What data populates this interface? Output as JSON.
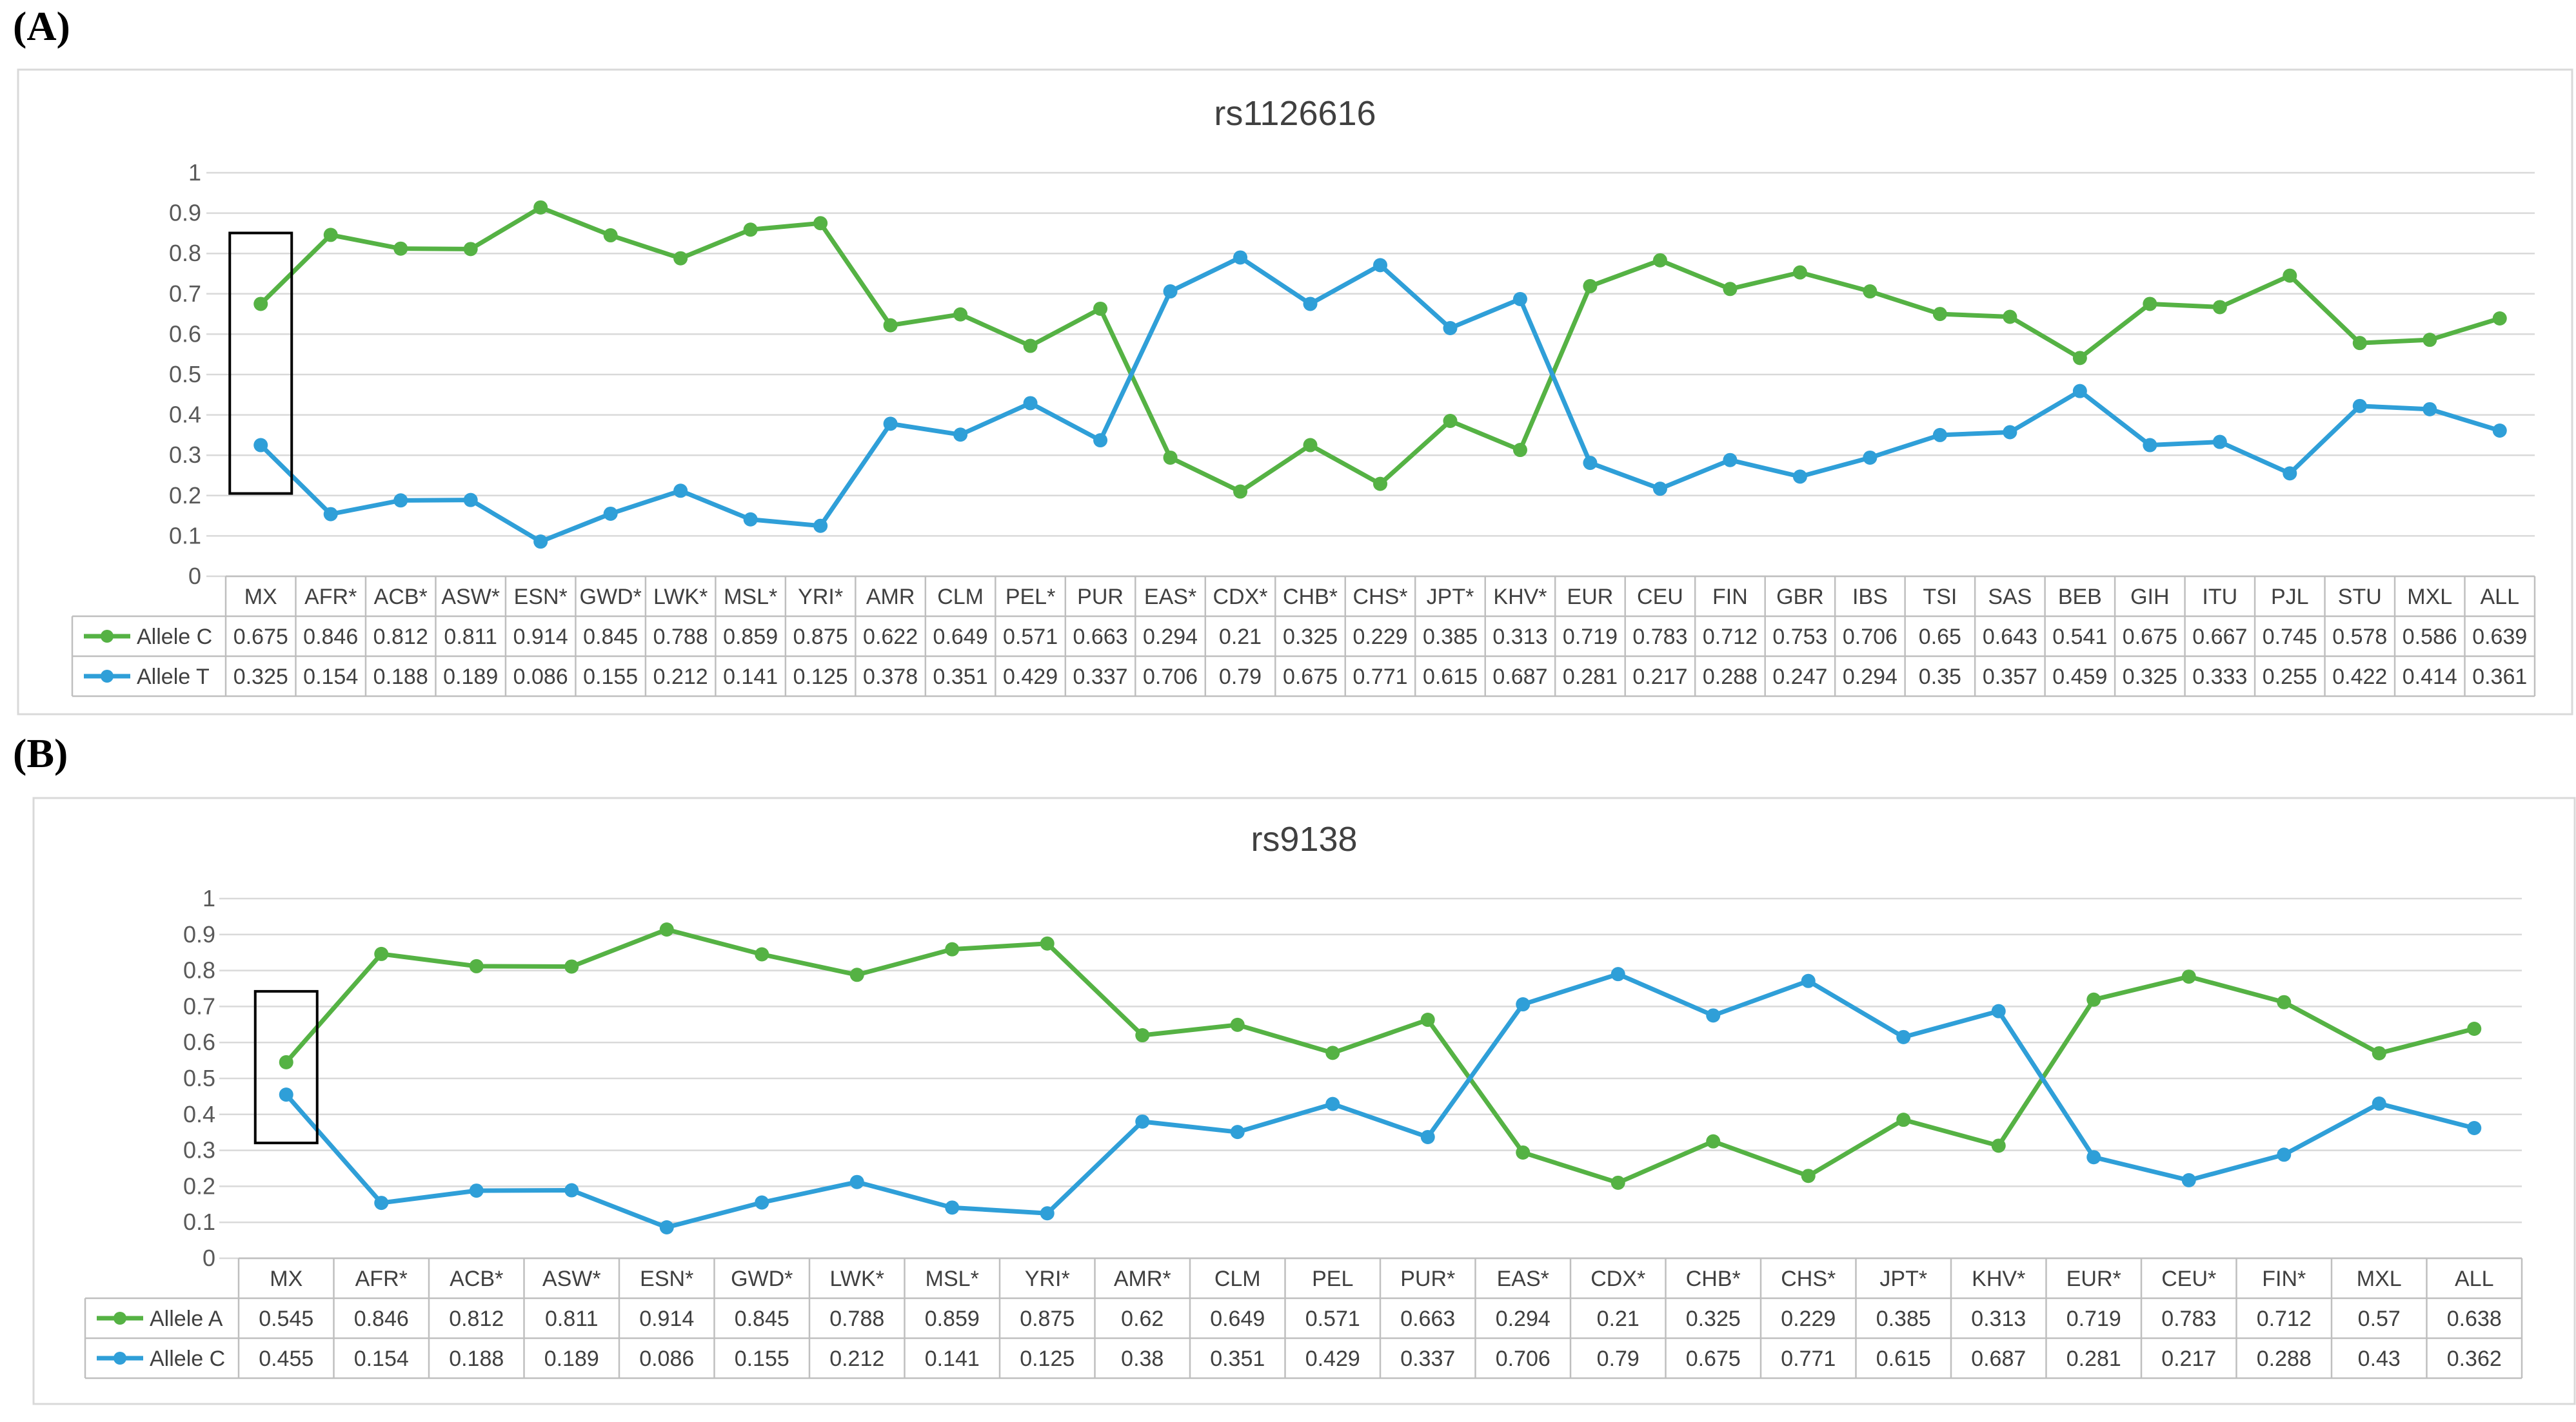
{
  "panels": [
    {
      "label": "(A)"
    },
    {
      "label": "(B)"
    }
  ],
  "chart_data": [
    {
      "type": "line",
      "title": "rs1126616",
      "ylim": [
        0,
        1
      ],
      "yticks": [
        "0",
        "0.1",
        "0.2",
        "0.3",
        "0.4",
        "0.5",
        "0.6",
        "0.7",
        "0.8",
        "0.9",
        "1"
      ],
      "grid": true,
      "legend": "table below chart",
      "highlight": "MX",
      "categories": [
        "MX",
        "AFR*",
        "ACB*",
        "ASW*",
        "ESN*",
        "GWD*",
        "LWK*",
        "MSL*",
        "YRI*",
        "AMR",
        "CLM",
        "PEL*",
        "PUR",
        "EAS*",
        "CDX*",
        "CHB*",
        "CHS*",
        "JPT*",
        "KHV*",
        "EUR",
        "CEU",
        "FIN",
        "GBR",
        "IBS",
        "TSI",
        "SAS",
        "BEB",
        "GIH",
        "ITU",
        "PJL",
        "STU",
        "MXL",
        "ALL"
      ],
      "series": [
        {
          "name": "Allele C",
          "color": "#55b244",
          "values": [
            0.675,
            0.846,
            0.812,
            0.811,
            0.914,
            0.845,
            0.788,
            0.859,
            0.875,
            0.622,
            0.649,
            0.571,
            0.663,
            0.294,
            0.21,
            0.325,
            0.229,
            0.385,
            0.313,
            0.719,
            0.783,
            0.712,
            0.753,
            0.706,
            0.65,
            0.643,
            0.541,
            0.675,
            0.667,
            0.745,
            0.578,
            0.586,
            0.639
          ]
        },
        {
          "name": "Allele T",
          "color": "#2f9fd8",
          "values": [
            0.325,
            0.154,
            0.188,
            0.189,
            0.086,
            0.155,
            0.212,
            0.141,
            0.125,
            0.378,
            0.351,
            0.429,
            0.337,
            0.706,
            0.79,
            0.675,
            0.771,
            0.615,
            0.687,
            0.281,
            0.217,
            0.288,
            0.247,
            0.294,
            0.35,
            0.357,
            0.459,
            0.325,
            0.333,
            0.255,
            0.422,
            0.414,
            0.361
          ]
        }
      ]
    },
    {
      "type": "line",
      "title": "rs9138",
      "ylim": [
        0,
        1
      ],
      "yticks": [
        "0",
        "0.1",
        "0.2",
        "0.3",
        "0.4",
        "0.5",
        "0.6",
        "0.7",
        "0.8",
        "0.9",
        "1"
      ],
      "grid": true,
      "legend": "table below chart",
      "highlight": "MX",
      "categories": [
        "MX",
        "AFR*",
        "ACB*",
        "ASW*",
        "ESN*",
        "GWD*",
        "LWK*",
        "MSL*",
        "YRI*",
        "AMR*",
        "CLM",
        "PEL",
        "PUR*",
        "EAS*",
        "CDX*",
        "CHB*",
        "CHS*",
        "JPT*",
        "KHV*",
        "EUR*",
        "CEU*",
        "FIN*",
        "MXL",
        "ALL"
      ],
      "series": [
        {
          "name": "Allele A",
          "color": "#55b244",
          "values": [
            0.545,
            0.846,
            0.812,
            0.811,
            0.914,
            0.845,
            0.788,
            0.859,
            0.875,
            0.62,
            0.649,
            0.571,
            0.663,
            0.294,
            0.21,
            0.325,
            0.229,
            0.385,
            0.313,
            0.719,
            0.783,
            0.712,
            0.57,
            0.638
          ]
        },
        {
          "name": "Allele C",
          "color": "#2f9fd8",
          "values": [
            0.455,
            0.154,
            0.188,
            0.189,
            0.086,
            0.155,
            0.212,
            0.141,
            0.125,
            0.38,
            0.351,
            0.429,
            0.337,
            0.706,
            0.79,
            0.675,
            0.771,
            0.615,
            0.687,
            0.281,
            0.217,
            0.288,
            0.43,
            0.362
          ]
        }
      ]
    }
  ]
}
